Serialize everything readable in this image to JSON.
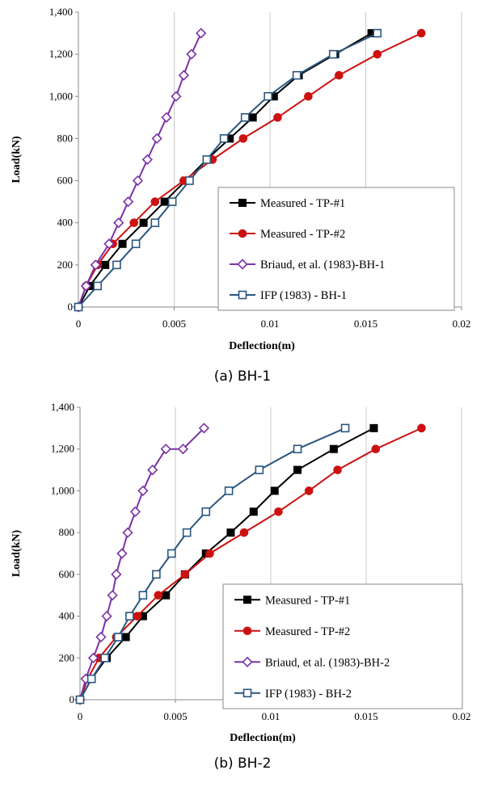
{
  "chart_data": [
    {
      "type": "line",
      "caption": "(a) BH-1",
      "xlabel": "Deflection(m)",
      "ylabel": "Load(kN)",
      "xlim": [
        0,
        0.02
      ],
      "ylim": [
        0,
        1400
      ],
      "x_ticks": [
        0,
        0.005,
        0.01,
        0.015,
        0.02
      ],
      "x_tick_labels": [
        "0",
        "0.005",
        "0.01",
        "0.015",
        "0.02"
      ],
      "y_ticks": [
        0,
        200,
        400,
        600,
        800,
        1000,
        1200,
        1400
      ],
      "y_tick_labels": [
        "0",
        "200",
        "400",
        "600",
        "800",
        "1,000",
        "1,200",
        "1,400"
      ],
      "grid": "vertical",
      "legend_position": "right",
      "series": [
        {
          "name": "Measured - TP-#1",
          "color": "#000000",
          "marker": "square-filled",
          "x": [
            0,
            0.0006,
            0.0014,
            0.0023,
            0.0034,
            0.0045,
            0.0056,
            0.0067,
            0.0079,
            0.0091,
            0.0102,
            0.0115,
            0.0134,
            0.0153
          ],
          "y": [
            0,
            100,
            200,
            300,
            400,
            500,
            600,
            700,
            800,
            900,
            1000,
            1100,
            1200,
            1300
          ]
        },
        {
          "name": "Measured - TP-#2",
          "color": "#cc1111",
          "marker": "circle-filled",
          "x": [
            0,
            0.0004,
            0.001,
            0.0018,
            0.0029,
            0.004,
            0.0055,
            0.007,
            0.0086,
            0.0104,
            0.012,
            0.0136,
            0.0156,
            0.0179
          ],
          "y": [
            0,
            100,
            200,
            300,
            400,
            500,
            600,
            700,
            800,
            900,
            1000,
            1100,
            1200,
            1300
          ]
        },
        {
          "name": "Briaud, et al. (1983)-BH-1",
          "color": "#7a32a8",
          "marker": "diamond-open",
          "x": [
            0,
            0.0004,
            0.0009,
            0.0016,
            0.0021,
            0.0026,
            0.0031,
            0.0036,
            0.0041,
            0.0046,
            0.0051,
            0.0055,
            0.0059,
            0.0064
          ],
          "y": [
            0,
            100,
            200,
            300,
            400,
            500,
            600,
            700,
            800,
            900,
            1000,
            1100,
            1200,
            1300
          ]
        },
        {
          "name": "IFP (1983) - BH-1",
          "color": "#2a5680",
          "marker": "square-open",
          "x": [
            0,
            0.001,
            0.002,
            0.003,
            0.004,
            0.0049,
            0.0058,
            0.0067,
            0.0076,
            0.0087,
            0.0099,
            0.0114,
            0.0133,
            0.0156
          ],
          "y": [
            0,
            100,
            200,
            300,
            400,
            500,
            600,
            700,
            800,
            900,
            1000,
            1100,
            1200,
            1300
          ]
        }
      ]
    },
    {
      "type": "line",
      "caption": "(b) BH-2",
      "xlabel": "Deflection(m)",
      "ylabel": "Load(kN)",
      "xlim": [
        0,
        0.02
      ],
      "ylim": [
        0,
        1400
      ],
      "x_ticks": [
        0,
        0.005,
        0.01,
        0.015,
        0.02
      ],
      "x_tick_labels": [
        "0",
        "0.005",
        "0.01",
        "0.015",
        "0.02"
      ],
      "y_ticks": [
        0,
        200,
        400,
        600,
        800,
        1000,
        1200,
        1400
      ],
      "y_tick_labels": [
        "0",
        "200",
        "400",
        "600",
        "800",
        "1,000",
        "1,200",
        "1,400"
      ],
      "grid": "vertical",
      "legend_position": "right",
      "series": [
        {
          "name": "Measured - TP-#1",
          "color": "#000000",
          "marker": "square-filled",
          "x": [
            0,
            0.0006,
            0.0014,
            0.0024,
            0.0033,
            0.0045,
            0.0055,
            0.0066,
            0.0079,
            0.0091,
            0.0102,
            0.0114,
            0.0133,
            0.0154
          ],
          "y": [
            0,
            100,
            200,
            300,
            400,
            500,
            600,
            700,
            800,
            900,
            1000,
            1100,
            1200,
            1300
          ]
        },
        {
          "name": "Measured - TP-#2",
          "color": "#cc1111",
          "marker": "circle-filled",
          "x": [
            0,
            0.0004,
            0.001,
            0.0019,
            0.003,
            0.0041,
            0.0055,
            0.0068,
            0.0086,
            0.0104,
            0.012,
            0.0135,
            0.0155,
            0.0179
          ],
          "y": [
            0,
            100,
            200,
            300,
            400,
            500,
            600,
            700,
            800,
            900,
            1000,
            1100,
            1200,
            1300
          ]
        },
        {
          "name": "Briaud, et al. (1983)-BH-2",
          "color": "#7a32a8",
          "marker": "diamond-open",
          "x": [
            0,
            0.0003,
            0.0007,
            0.0011,
            0.0014,
            0.0017,
            0.0019,
            0.0022,
            0.0025,
            0.0029,
            0.0033,
            0.0038,
            0.0045,
            0.0054,
            0.0065
          ],
          "y": [
            0,
            100,
            200,
            300,
            400,
            500,
            600,
            700,
            800,
            900,
            1000,
            1100,
            1200,
            1200,
            1300
          ]
        },
        {
          "name": "IFP (1983) - BH-2",
          "color": "#2a5680",
          "marker": "square-open",
          "x": [
            0,
            0.0006,
            0.0013,
            0.002,
            0.0026,
            0.0033,
            0.004,
            0.0048,
            0.0056,
            0.0066,
            0.0078,
            0.0094,
            0.0114,
            0.0139
          ],
          "y": [
            0,
            100,
            200,
            300,
            400,
            500,
            600,
            700,
            800,
            900,
            1000,
            1100,
            1200,
            1300
          ]
        }
      ]
    }
  ]
}
